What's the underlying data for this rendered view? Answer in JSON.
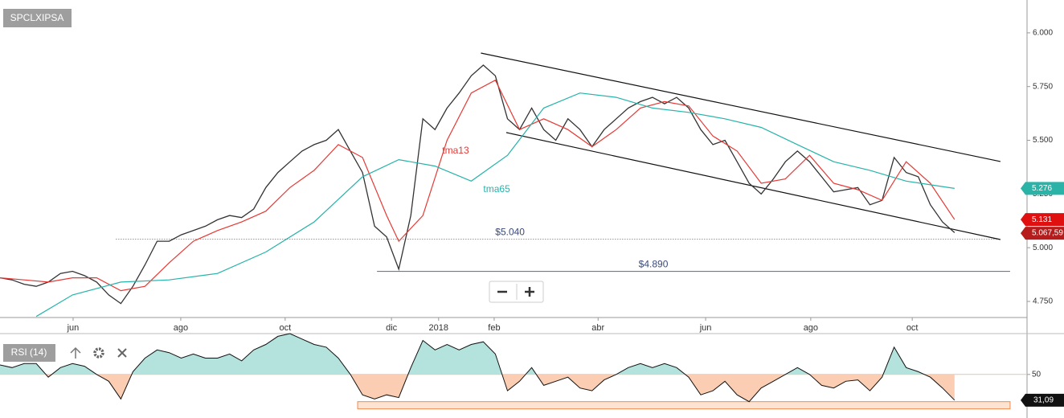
{
  "chart_data": [
    {
      "type": "line",
      "title": "SPCLXIPSA",
      "x": [
        0,
        1,
        2,
        3,
        4,
        5,
        6,
        7,
        8,
        9,
        10,
        11,
        12,
        13,
        14,
        15,
        16,
        17,
        18,
        19,
        20,
        21,
        22,
        23,
        24,
        25,
        26,
        27,
        28,
        29,
        30,
        31,
        32,
        33,
        34,
        35,
        36,
        37,
        38,
        39,
        40,
        41,
        42,
        43,
        44,
        45,
        46,
        47,
        48,
        49,
        50,
        51,
        52,
        53,
        54,
        55,
        56,
        57,
        58,
        59,
        60,
        61,
        62,
        63,
        64,
        65,
        66,
        67,
        68,
        69,
        70,
        71,
        72,
        73,
        74,
        75,
        76,
        77,
        78,
        79
      ],
      "xlim": [
        0,
        85
      ],
      "xticks": [
        {
          "value": 6.05,
          "label": "jun"
        },
        {
          "value": 14.96,
          "label": "ago"
        },
        {
          "value": 23.6,
          "label": "oct"
        },
        {
          "value": 32.4,
          "label": "dic"
        },
        {
          "value": 36.3,
          "label": "2018"
        },
        {
          "value": 40.9,
          "label": "feb"
        },
        {
          "value": 49.5,
          "label": "abr"
        },
        {
          "value": 58.4,
          "label": "jun"
        },
        {
          "value": 67.1,
          "label": "ago"
        },
        {
          "value": 75.5,
          "label": "oct"
        }
      ],
      "ylim": [
        4.675,
        6.153
      ],
      "yticks": [
        {
          "value": 6.0,
          "label": "6.000"
        },
        {
          "value": 5.75,
          "label": "5.750"
        },
        {
          "value": 5.5,
          "label": "5.500"
        },
        {
          "value": 5.25,
          "label": "5.250"
        },
        {
          "value": 5.0,
          "label": "5.000"
        },
        {
          "value": 4.75,
          "label": "4.750"
        }
      ],
      "series": [
        {
          "color": "#333333",
          "values": [
            4.86,
            4.85,
            4.83,
            4.82,
            4.84,
            4.88,
            4.89,
            4.87,
            4.84,
            4.78,
            4.74,
            4.82,
            4.92,
            5.03,
            5.03,
            5.06,
            5.08,
            5.1,
            5.13,
            5.15,
            5.14,
            5.18,
            5.28,
            5.35,
            5.4,
            5.45,
            5.48,
            5.5,
            5.55,
            5.45,
            5.35,
            5.1,
            5.05,
            4.9,
            5.15,
            5.6,
            5.55,
            5.65,
            5.72,
            5.8,
            5.85,
            5.8,
            5.6,
            5.55,
            5.65,
            5.55,
            5.5,
            5.6,
            5.55,
            5.47,
            5.55,
            5.6,
            5.65,
            5.68,
            5.7,
            5.67,
            5.7,
            5.65,
            5.55,
            5.48,
            5.5,
            5.4,
            5.3,
            5.25,
            5.32,
            5.4,
            5.45,
            5.4,
            5.33,
            5.26,
            5.27,
            5.28,
            5.2,
            5.22,
            5.42,
            5.35,
            5.33,
            5.2,
            5.12,
            5.07
          ]
        },
        {
          "name": "tma13",
          "color": "#e53935",
          "label_at": [
            36.6,
            5.45
          ],
          "x": [
            0,
            2,
            4,
            6,
            8,
            10,
            12,
            14,
            16,
            18,
            20,
            22,
            24,
            26,
            28,
            30,
            32,
            33,
            35,
            37,
            39,
            41,
            43,
            45,
            47,
            49,
            51,
            53,
            55,
            57,
            59,
            61,
            63,
            65,
            67,
            69,
            71,
            73,
            75,
            77,
            79
          ],
          "values": [
            4.86,
            4.85,
            4.84,
            4.86,
            4.86,
            4.8,
            4.82,
            4.93,
            5.03,
            5.08,
            5.12,
            5.17,
            5.28,
            5.36,
            5.48,
            5.42,
            5.15,
            5.03,
            5.15,
            5.5,
            5.72,
            5.78,
            5.55,
            5.6,
            5.55,
            5.47,
            5.55,
            5.65,
            5.68,
            5.66,
            5.52,
            5.45,
            5.3,
            5.32,
            5.43,
            5.3,
            5.27,
            5.22,
            5.4,
            5.3,
            5.131
          ]
        },
        {
          "name": "tma65",
          "color": "#26b3aa",
          "label_at": [
            40.0,
            5.27
          ],
          "x": [
            3,
            6,
            10,
            14,
            18,
            22,
            26,
            30,
            33,
            36,
            39,
            42,
            45,
            48,
            51,
            54,
            57,
            60,
            63,
            66,
            69,
            72,
            75,
            79
          ],
          "values": [
            4.68,
            4.78,
            4.84,
            4.85,
            4.88,
            4.98,
            5.12,
            5.33,
            5.41,
            5.38,
            5.31,
            5.43,
            5.65,
            5.72,
            5.7,
            5.65,
            5.63,
            5.6,
            5.56,
            5.48,
            5.4,
            5.36,
            5.31,
            5.276
          ]
        }
      ],
      "hlines": [
        {
          "value": 5.04,
          "label": "$5.040",
          "x": [
            9.6,
            82.8
          ],
          "style": "dotted"
        },
        {
          "value": 4.89,
          "label": "$4.890",
          "x": [
            31.2,
            83.6
          ],
          "style": "solid"
        }
      ],
      "trendlines": [
        {
          "x": [
            39.8,
            82.8
          ],
          "y": [
            5.906,
            5.401
          ]
        },
        {
          "x": [
            41.9,
            82.8
          ],
          "y": [
            5.536,
            5.038
          ]
        }
      ],
      "price_tags": [
        {
          "value": 5.276,
          "label": "5.276",
          "color": "#2bb3a8"
        },
        {
          "value": 5.131,
          "label": "5.131",
          "color": "#e01010"
        },
        {
          "value": 5.06759,
          "label": "5.067,59",
          "color": "#b71c1c"
        }
      ]
    },
    {
      "type": "line",
      "title": "RSI (14)",
      "ylim": [
        18,
        80
      ],
      "yticks": [
        50
      ],
      "values": [
        57,
        55,
        58,
        58,
        48,
        55,
        58,
        56,
        50,
        45,
        32,
        52,
        62,
        68,
        66,
        62,
        65,
        62,
        62,
        65,
        60,
        68,
        72,
        78,
        80,
        76,
        72,
        70,
        62,
        50,
        35,
        32,
        35,
        33,
        55,
        75,
        68,
        72,
        68,
        72,
        74,
        65,
        38,
        45,
        55,
        42,
        45,
        48,
        40,
        38,
        46,
        50,
        55,
        58,
        55,
        58,
        55,
        48,
        35,
        38,
        45,
        35,
        30,
        40,
        45,
        50,
        55,
        50,
        42,
        40,
        45,
        46,
        38,
        48,
        70,
        55,
        52,
        48,
        40,
        31.09
      ],
      "value_labels": {
        "79": "31,09"
      },
      "band": {
        "x": [
          29.6,
          83.6
        ],
        "y": [
          24.7,
          30
        ]
      }
    }
  ]
}
